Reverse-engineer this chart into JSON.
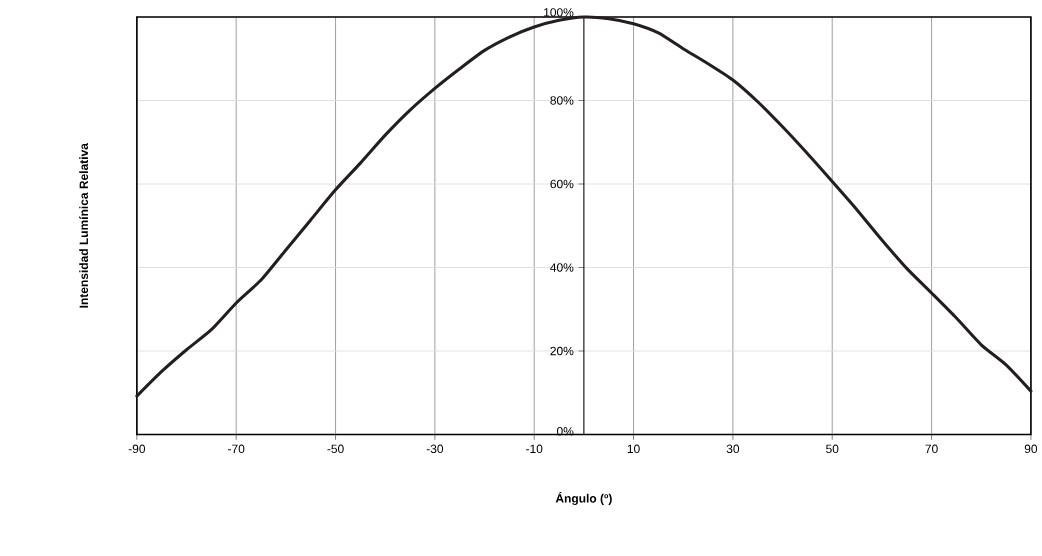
{
  "chart_data": {
    "type": "line",
    "x": [
      -90,
      -85,
      -80,
      -75,
      -70,
      -65,
      -60,
      -55,
      -50,
      -45,
      -40,
      -35,
      -30,
      -25,
      -20,
      -15,
      -10,
      -5,
      0,
      5,
      10,
      15,
      20,
      25,
      30,
      35,
      40,
      45,
      50,
      55,
      60,
      65,
      70,
      75,
      80,
      85,
      90
    ],
    "values": [
      9.2,
      15.1,
      20.3,
      25.1,
      31.5,
      37,
      44.2,
      51.4,
      58.6,
      65,
      71.7,
      77.7,
      82.9,
      87.6,
      92,
      95.2,
      97.6,
      99.2,
      100,
      99.6,
      98.4,
      96.2,
      92.4,
      88.8,
      84.9,
      79.7,
      73.7,
      67.3,
      60.6,
      53.8,
      46.6,
      39.8,
      33.9,
      27.9,
      21.5,
      16.7,
      10.4
    ],
    "color": "#231f20",
    "xlim": [
      -90,
      90
    ],
    "ylim": [
      0,
      100
    ],
    "xticks": [
      -90,
      -70,
      -50,
      -30,
      -10,
      10,
      30,
      50,
      70,
      90
    ],
    "yticks": [
      {
        "value": 0,
        "label": "0%"
      },
      {
        "value": 20,
        "label": "20%"
      },
      {
        "value": 40,
        "label": "40%"
      },
      {
        "value": 60,
        "label": "60%"
      },
      {
        "value": 80,
        "label": "80%"
      },
      {
        "value": 100,
        "label": "100%"
      }
    ],
    "grid": true,
    "line_style": "solid",
    "xlabel": "Ángulo (º)",
    "ylabel": "Intensidad Lumínica Relativa"
  }
}
